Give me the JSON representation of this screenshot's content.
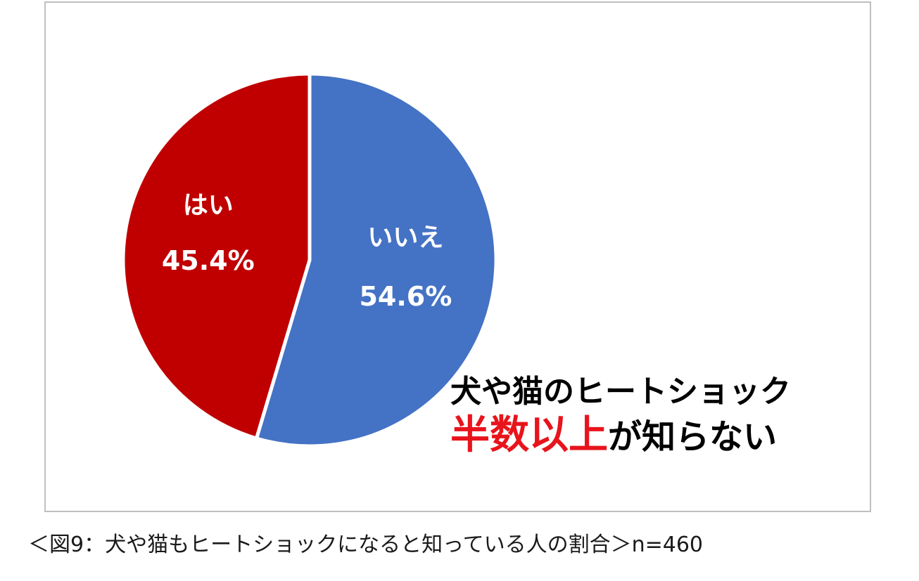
{
  "chart_data": {
    "type": "pie",
    "slices": [
      {
        "label": "いいえ",
        "value": 54.6,
        "value_label": "54.6%",
        "color": "#4472c4"
      },
      {
        "label": "はい",
        "value": 45.4,
        "value_label": "45.4%",
        "color": "#c00000"
      }
    ],
    "start": "12 o'clock",
    "direction": "clockwise"
  },
  "callout": {
    "line1": "犬や猫のヒートショック",
    "highlight": "半数以上",
    "line2_rest": "が知らない",
    "highlight_color": "#e8141c"
  },
  "caption": "＜図9：犬や猫もヒートショックになると知っている人の割合＞n=460"
}
